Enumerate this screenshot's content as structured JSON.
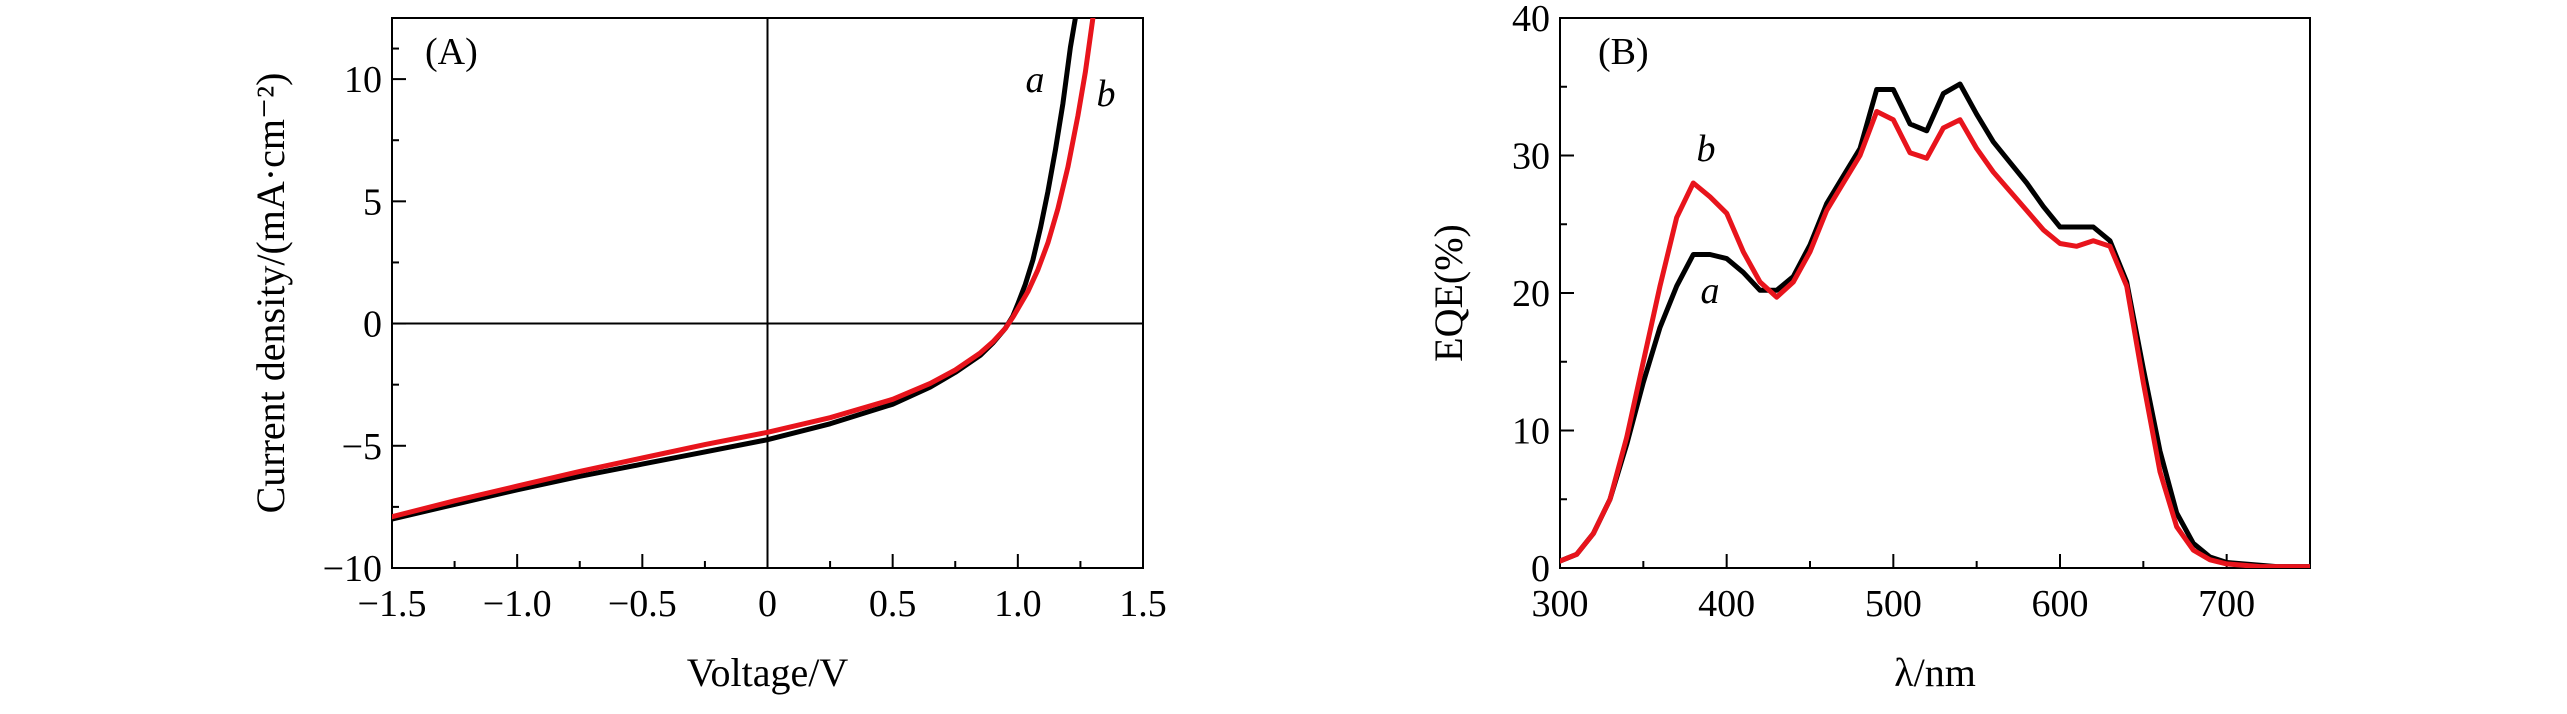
{
  "colors": {
    "series_a": "#000000",
    "series_b": "#e8141c",
    "axis": "#000000"
  },
  "chart_data": [
    {
      "type": "line",
      "panel_label": "(A)",
      "xlabel": "Voltage/V",
      "ylabel": "Current density/(mA·cm⁻²)",
      "xlim": [
        -1.5,
        1.5
      ],
      "ylim": [
        -10,
        12.5
      ],
      "xticks": [
        -1.5,
        -1.0,
        -0.5,
        0,
        0.5,
        1.0,
        1.5
      ],
      "xtick_labels": [
        "−1.5",
        "−1.0",
        "−0.5",
        "0",
        "0.5",
        "1.0",
        "1.5"
      ],
      "yticks": [
        -10,
        -5,
        0,
        5,
        10
      ],
      "ytick_labels": [
        "−10",
        "−5",
        "0",
        "5",
        "10"
      ],
      "zero_lines": true,
      "series": [
        {
          "name": "a",
          "color": "#000000",
          "x": [
            -1.5,
            -1.25,
            -1.0,
            -0.75,
            -0.5,
            -0.25,
            0.0,
            0.25,
            0.5,
            0.65,
            0.75,
            0.85,
            0.9,
            0.95,
            0.98,
            1.0,
            1.03,
            1.06,
            1.09,
            1.12,
            1.15,
            1.18,
            1.21,
            1.23
          ],
          "y": [
            -8.0,
            -7.4,
            -6.8,
            -6.25,
            -5.75,
            -5.25,
            -4.75,
            -4.1,
            -3.3,
            -2.6,
            -2.0,
            -1.3,
            -0.8,
            -0.2,
            0.3,
            0.8,
            1.6,
            2.6,
            3.9,
            5.4,
            7.1,
            9.0,
            11.3,
            12.5
          ]
        },
        {
          "name": "b",
          "color": "#e8141c",
          "x": [
            -1.5,
            -1.25,
            -1.0,
            -0.75,
            -0.5,
            -0.25,
            0.0,
            0.25,
            0.5,
            0.65,
            0.75,
            0.85,
            0.9,
            0.95,
            0.98,
            1.0,
            1.04,
            1.08,
            1.12,
            1.16,
            1.2,
            1.24,
            1.27,
            1.3
          ],
          "y": [
            -7.9,
            -7.25,
            -6.65,
            -6.05,
            -5.5,
            -4.95,
            -4.45,
            -3.85,
            -3.1,
            -2.45,
            -1.9,
            -1.2,
            -0.75,
            -0.2,
            0.25,
            0.6,
            1.3,
            2.2,
            3.3,
            4.7,
            6.4,
            8.5,
            10.3,
            12.5
          ]
        }
      ]
    },
    {
      "type": "line",
      "panel_label": "(B)",
      "xlabel": "λ/nm",
      "ylabel": "EQE(%)",
      "xlim": [
        300,
        750
      ],
      "ylim": [
        0,
        40
      ],
      "xticks": [
        300,
        400,
        500,
        600,
        700
      ],
      "xtick_labels": [
        "300",
        "400",
        "500",
        "600",
        "700"
      ],
      "yticks": [
        0,
        10,
        20,
        30,
        40
      ],
      "ytick_labels": [
        "0",
        "10",
        "20",
        "30",
        "40"
      ],
      "zero_lines": false,
      "series": [
        {
          "name": "a",
          "color": "#000000",
          "x": [
            300,
            310,
            320,
            330,
            340,
            350,
            360,
            370,
            380,
            390,
            400,
            410,
            420,
            430,
            440,
            450,
            460,
            470,
            480,
            490,
            500,
            510,
            520,
            530,
            540,
            550,
            560,
            570,
            580,
            590,
            600,
            610,
            620,
            630,
            640,
            650,
            660,
            670,
            680,
            690,
            700,
            710,
            720,
            730,
            740,
            750
          ],
          "y": [
            0.5,
            1.0,
            2.5,
            5.0,
            9.0,
            13.5,
            17.5,
            20.5,
            22.8,
            22.8,
            22.5,
            21.5,
            20.2,
            20.2,
            21.2,
            23.5,
            26.5,
            28.5,
            30.5,
            34.8,
            34.8,
            32.3,
            31.8,
            34.5,
            35.2,
            33.0,
            31.0,
            29.5,
            28.0,
            26.3,
            24.8,
            24.8,
            24.8,
            23.8,
            20.8,
            14.5,
            8.5,
            4.0,
            1.8,
            0.8,
            0.4,
            0.3,
            0.2,
            0.1,
            0.1,
            0.1
          ]
        },
        {
          "name": "b",
          "color": "#e8141c",
          "x": [
            300,
            310,
            320,
            330,
            340,
            350,
            360,
            370,
            380,
            390,
            400,
            410,
            420,
            430,
            440,
            450,
            460,
            470,
            480,
            490,
            500,
            510,
            520,
            530,
            540,
            550,
            560,
            570,
            580,
            590,
            600,
            610,
            620,
            630,
            640,
            650,
            660,
            670,
            680,
            690,
            700,
            710,
            720,
            730,
            740,
            750
          ],
          "y": [
            0.5,
            1.0,
            2.5,
            5.0,
            9.5,
            15.0,
            20.5,
            25.5,
            28.0,
            27.0,
            25.8,
            23.0,
            20.8,
            19.7,
            20.8,
            23.0,
            26.0,
            28.0,
            30.0,
            33.2,
            32.6,
            30.2,
            29.8,
            32.0,
            32.6,
            30.5,
            28.8,
            27.4,
            26.0,
            24.6,
            23.6,
            23.4,
            23.8,
            23.4,
            20.5,
            13.5,
            7.0,
            3.0,
            1.3,
            0.6,
            0.3,
            0.2,
            0.1,
            0.1,
            0.1,
            0.1
          ]
        }
      ]
    }
  ]
}
